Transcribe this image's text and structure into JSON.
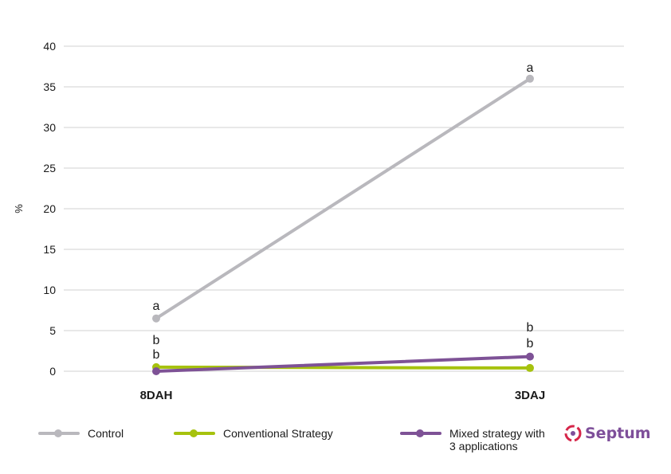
{
  "colors": {
    "control": "#b9b8bd",
    "conventional": "#a6c20e",
    "mixed": "#7e5296",
    "grid": "#d0d0d0",
    "brand": "#7e4f9a",
    "brand_red": "#d6264a"
  },
  "logo": {
    "text": "Septum",
    "icon": "septum-logo-icon"
  },
  "chart_data": {
    "type": "line",
    "categories": [
      "8DAH",
      "3DAJ"
    ],
    "ylabel": "%",
    "xlabel": "",
    "title": "",
    "ylim": [
      0,
      40
    ],
    "yticks": [
      0,
      5,
      10,
      15,
      20,
      25,
      30,
      35,
      40
    ],
    "grid": true,
    "legend_position": "bottom",
    "series": [
      {
        "name": "Control",
        "values": [
          6.5,
          36
        ],
        "color": "#b9b8bd",
        "labels": [
          "a",
          "a"
        ]
      },
      {
        "name": "Conventional Strategy",
        "values": [
          0.5,
          0.4
        ],
        "color": "#a6c20e",
        "labels": [
          "b",
          "b"
        ]
      },
      {
        "name": "Mixed strategy with\n3 applications",
        "values": [
          0.0,
          1.8
        ],
        "color": "#7e5296",
        "labels": [
          "b",
          "b"
        ]
      }
    ]
  }
}
